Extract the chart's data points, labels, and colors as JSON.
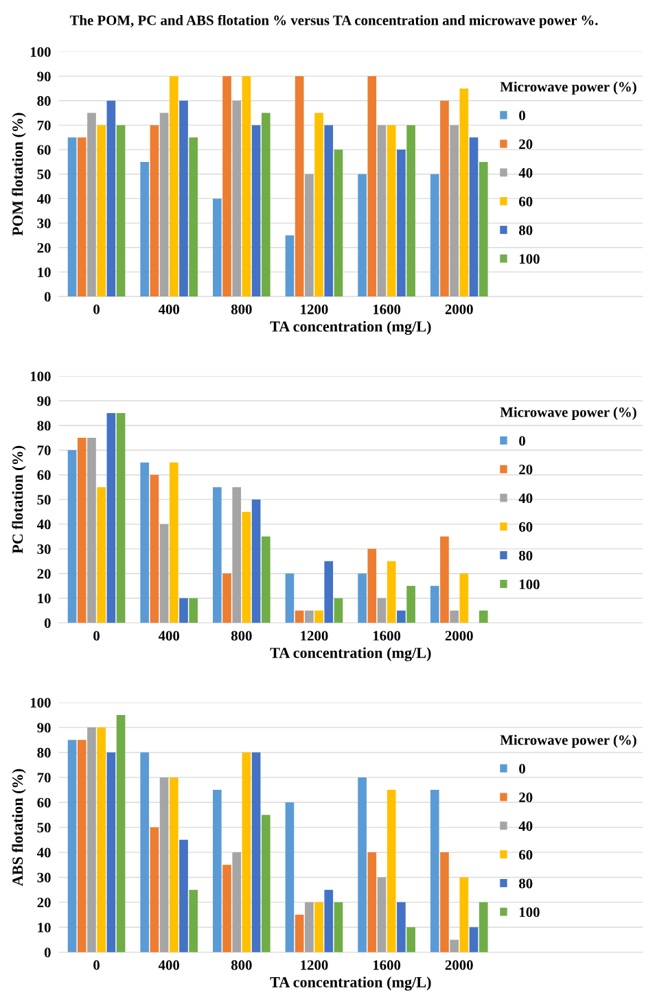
{
  "chart_data": [
    {
      "type": "bar",
      "title": "The POM, PC and ABS flotation % versus TA concentration and microwave power %.",
      "xlabel": "TA concentration (mg/L)",
      "ylabel": "POM flotation (%)",
      "categories": [
        "0",
        "400",
        "800",
        "1200",
        "1600",
        "2000"
      ],
      "ylim": [
        0,
        100
      ],
      "yticks": [
        0,
        10,
        20,
        30,
        40,
        50,
        60,
        70,
        80,
        90,
        100
      ],
      "grid": "y",
      "legend": "right",
      "legend_title": "Microwave power (%)",
      "series": [
        {
          "name": "0",
          "color": "#5b9bd5",
          "values": [
            65,
            55,
            40,
            25,
            50,
            50
          ]
        },
        {
          "name": "20",
          "color": "#ed7d31",
          "values": [
            65,
            70,
            90,
            90,
            90,
            80
          ]
        },
        {
          "name": "40",
          "color": "#a5a5a5",
          "values": [
            75,
            75,
            80,
            50,
            70,
            70
          ]
        },
        {
          "name": "60",
          "color": "#ffc000",
          "values": [
            70,
            90,
            90,
            75,
            70,
            85
          ]
        },
        {
          "name": "80",
          "color": "#4472c4",
          "values": [
            80,
            80,
            70,
            70,
            60,
            65
          ]
        },
        {
          "name": "100",
          "color": "#70ad47",
          "values": [
            70,
            65,
            75,
            60,
            70,
            55
          ]
        }
      ]
    },
    {
      "type": "bar",
      "xlabel": "TA concentration (mg/L)",
      "ylabel": "PC flotation (%)",
      "categories": [
        "0",
        "400",
        "800",
        "1200",
        "1600",
        "2000"
      ],
      "ylim": [
        0,
        100
      ],
      "yticks": [
        0,
        10,
        20,
        30,
        40,
        50,
        60,
        70,
        80,
        90,
        100
      ],
      "grid": "y",
      "legend": "right",
      "legend_title": "Microwave power (%)",
      "series": [
        {
          "name": "0",
          "color": "#5b9bd5",
          "values": [
            70,
            65,
            55,
            20,
            20,
            15
          ]
        },
        {
          "name": "20",
          "color": "#ed7d31",
          "values": [
            75,
            60,
            20,
            5,
            30,
            35
          ]
        },
        {
          "name": "40",
          "color": "#a5a5a5",
          "values": [
            75,
            40,
            55,
            5,
            10,
            5
          ]
        },
        {
          "name": "60",
          "color": "#ffc000",
          "values": [
            55,
            65,
            45,
            5,
            25,
            20
          ]
        },
        {
          "name": "80",
          "color": "#4472c4",
          "values": [
            85,
            10,
            50,
            25,
            5,
            0
          ]
        },
        {
          "name": "100",
          "color": "#70ad47",
          "values": [
            85,
            10,
            35,
            10,
            15,
            5
          ]
        }
      ]
    },
    {
      "type": "bar",
      "xlabel": "TA concentration (mg/L)",
      "ylabel": "ABS flotation (%)",
      "categories": [
        "0",
        "400",
        "800",
        "1200",
        "1600",
        "2000"
      ],
      "ylim": [
        0,
        100
      ],
      "yticks": [
        0,
        10,
        20,
        30,
        40,
        50,
        60,
        70,
        80,
        90,
        100
      ],
      "grid": "y",
      "legend": "right",
      "legend_title": "Microwave power (%)",
      "series": [
        {
          "name": "0",
          "color": "#5b9bd5",
          "values": [
            85,
            80,
            65,
            60,
            70,
            65
          ]
        },
        {
          "name": "20",
          "color": "#ed7d31",
          "values": [
            85,
            50,
            35,
            15,
            40,
            40
          ]
        },
        {
          "name": "40",
          "color": "#a5a5a5",
          "values": [
            90,
            70,
            40,
            20,
            30,
            5
          ]
        },
        {
          "name": "60",
          "color": "#ffc000",
          "values": [
            90,
            70,
            80,
            20,
            65,
            30
          ]
        },
        {
          "name": "80",
          "color": "#4472c4",
          "values": [
            80,
            45,
            80,
            25,
            20,
            10
          ]
        },
        {
          "name": "100",
          "color": "#70ad47",
          "values": [
            95,
            25,
            55,
            20,
            10,
            20
          ]
        }
      ]
    }
  ]
}
